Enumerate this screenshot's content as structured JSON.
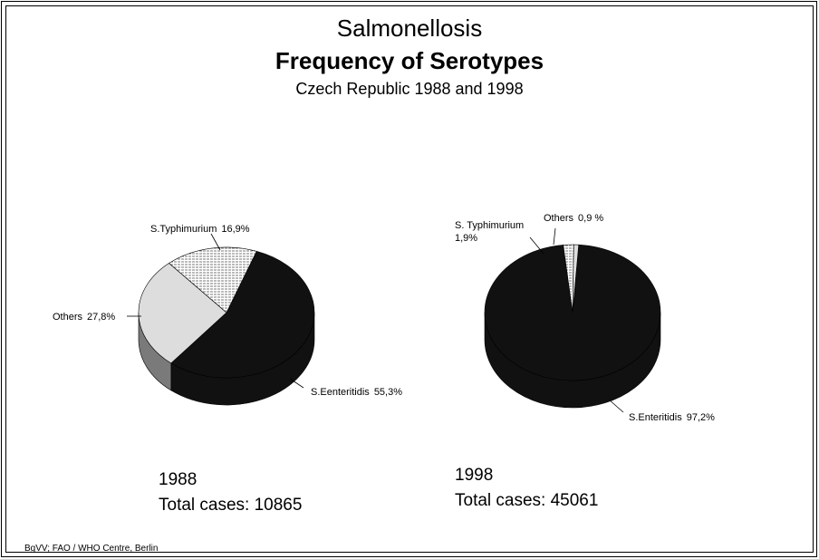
{
  "title": "Salmonellosis",
  "subtitle": "Frequency of Serotypes",
  "caption": "Czech Republic 1988 and 1998",
  "source": "BgVV; FAO / WHO Centre, Berlin",
  "chart_data": [
    {
      "type": "pie",
      "title": "1988",
      "note": "Total cases: 10865",
      "categories": [
        "S.Eenteritidis",
        "Others",
        "S.Typhimurium"
      ],
      "values": [
        55.3,
        27.8,
        16.9
      ],
      "value_labels": [
        "55,3%",
        "27,8%",
        "16,9%"
      ],
      "colors": [
        "#111111",
        "#dddddd",
        "#ffffff"
      ],
      "patterns": [
        null,
        null,
        "horizontal-lines"
      ]
    },
    {
      "type": "pie",
      "title": "1998",
      "note": "Total cases: 45061",
      "categories": [
        "S.Enteritidis",
        "S. Typhimurium",
        "Others"
      ],
      "values": [
        97.2,
        1.9,
        0.9
      ],
      "value_labels": [
        "97,2%",
        "1,9%",
        "0,9 %"
      ],
      "colors": [
        "#111111",
        "#ffffff",
        "#dddddd"
      ],
      "patterns": [
        null,
        "horizontal-lines",
        null
      ]
    }
  ]
}
